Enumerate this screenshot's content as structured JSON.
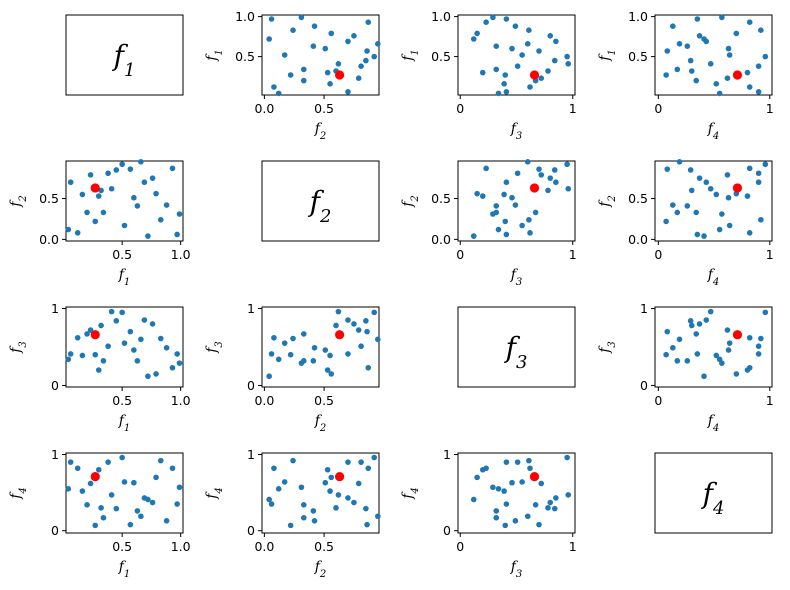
{
  "chart_data": {
    "type": "scatter",
    "title": "",
    "variables": [
      "f1",
      "f2",
      "f3",
      "f4"
    ],
    "variable_labels": [
      {
        "base": "f",
        "sub": "1"
      },
      {
        "base": "f",
        "sub": "2"
      },
      {
        "base": "f",
        "sub": "3"
      },
      {
        "base": "f",
        "sub": "4"
      }
    ],
    "layout": "4x4 scatter matrix; row variable on y-axis, column variable on x-axis; diagonal shows variable name",
    "grid": false,
    "legend": "none",
    "point_color": "#1f77b4",
    "highlight_color": "#ff0000",
    "highlight_point": {
      "f1": 0.27,
      "f2": 0.63,
      "f3": 0.66,
      "f4": 0.71
    },
    "ticks": {
      "f1": [
        {
          "value": 0.5,
          "label": "0.5"
        },
        {
          "value": 1.0,
          "label": "1.0"
        }
      ],
      "f2": [
        {
          "value": 0,
          "label": "0.0"
        },
        {
          "value": 0.5,
          "label": "0.5"
        }
      ],
      "f3": [
        {
          "value": 0,
          "label": "0"
        },
        {
          "value": 1,
          "label": "1"
        }
      ],
      "f4": [
        {
          "value": 0,
          "label": "0"
        },
        {
          "value": 1,
          "label": "1"
        }
      ]
    },
    "ticks_when_x": {
      "f1": [
        {
          "value": 0.5,
          "label": "0.5"
        },
        {
          "value": 1.0,
          "label": "1.0"
        }
      ],
      "f2": [
        {
          "value": 0,
          "label": "0.0"
        },
        {
          "value": 0.5,
          "label": "0.5"
        }
      ],
      "f3": [
        {
          "value": 0,
          "label": "0"
        },
        {
          "value": 1,
          "label": "1"
        }
      ],
      "f4": [
        {
          "value": 0,
          "label": "0"
        },
        {
          "value": 1,
          "label": "1"
        }
      ]
    },
    "ticks_when_y": {
      "f1": [
        {
          "value": 0.5,
          "label": "0.5"
        },
        {
          "value": 1.0,
          "label": "1.0"
        }
      ],
      "f2": [
        {
          "value": 0,
          "label": "0.0"
        },
        {
          "value": 0.5,
          "label": "0.5"
        }
      ],
      "f3": [
        {
          "value": 0,
          "label": "0"
        },
        {
          "value": 1,
          "label": "1"
        }
      ],
      "f4": [
        {
          "value": 0,
          "label": "0"
        },
        {
          "value": 1,
          "label": "1"
        }
      ]
    },
    "axis_range": {
      "f1": [
        0.02,
        1.02
      ],
      "f2": [
        -0.02,
        0.96
      ],
      "f3": [
        -0.02,
        1.02
      ],
      "f4": [
        -0.03,
        1.02
      ]
    },
    "points": [
      {
        "f1": 0.04,
        "f2": 0.12,
        "f3": 0.34,
        "f4": 0.55
      },
      {
        "f1": 0.06,
        "f2": 0.7,
        "f3": 0.41,
        "f4": 0.9
      },
      {
        "f1": 0.12,
        "f2": 0.08,
        "f3": 0.62,
        "f4": 0.82
      },
      {
        "f1": 0.16,
        "f2": 0.55,
        "f3": 0.39,
        "f4": 0.52
      },
      {
        "f1": 0.2,
        "f2": 0.33,
        "f3": 0.67,
        "f4": 0.34
      },
      {
        "f1": 0.23,
        "f2": 0.79,
        "f3": 0.72,
        "f4": 0.62
      },
      {
        "f1": 0.27,
        "f2": 0.22,
        "f3": 0.4,
        "f4": 0.07
      },
      {
        "f1": 0.3,
        "f2": 0.53,
        "f3": 0.2,
        "f4": 0.8
      },
      {
        "f1": 0.32,
        "f2": 0.6,
        "f3": 0.78,
        "f4": 0.3
      },
      {
        "f1": 0.34,
        "f2": 0.33,
        "f3": 0.32,
        "f4": 0.17
      },
      {
        "f1": 0.38,
        "f2": 0.81,
        "f3": 0.51,
        "f4": 0.9
      },
      {
        "f1": 0.41,
        "f2": 0.62,
        "f3": 0.96,
        "f4": 0.47
      },
      {
        "f1": 0.45,
        "f2": 0.85,
        "f3": 0.84,
        "f4": 0.29
      },
      {
        "f1": 0.5,
        "f2": 0.92,
        "f3": 0.95,
        "f4": 0.96
      },
      {
        "f1": 0.52,
        "f2": 0.17,
        "f3": 0.55,
        "f4": 0.64
      },
      {
        "f1": 0.57,
        "f2": 0.86,
        "f3": 0.7,
        "f4": 0.08
      },
      {
        "f1": 0.6,
        "f2": 0.51,
        "f3": 0.46,
        "f4": 0.63
      },
      {
        "f1": 0.63,
        "f2": 0.41,
        "f3": 0.32,
        "f4": 0.26
      },
      {
        "f1": 0.66,
        "f2": 0.95,
        "f3": 0.6,
        "f4": 0.19
      },
      {
        "f1": 0.69,
        "f2": 0.7,
        "f3": 0.85,
        "f4": 0.43
      },
      {
        "f1": 0.72,
        "f2": 0.04,
        "f3": 0.12,
        "f4": 0.41
      },
      {
        "f1": 0.76,
        "f2": 0.75,
        "f3": 0.8,
        "f4": 0.37
      },
      {
        "f1": 0.79,
        "f2": 0.56,
        "f3": 0.15,
        "f4": 0.7
      },
      {
        "f1": 0.83,
        "f2": 0.24,
        "f3": 0.61,
        "f4": 0.92
      },
      {
        "f1": 0.88,
        "f2": 0.42,
        "f3": 0.49,
        "f4": 0.13
      },
      {
        "f1": 0.93,
        "f2": 0.87,
        "f3": 0.23,
        "f4": 0.82
      },
      {
        "f1": 0.97,
        "f2": 0.06,
        "f3": 0.41,
        "f4": 0.35
      },
      {
        "f1": 0.99,
        "f2": 0.31,
        "f3": 0.29,
        "f4": 0.57
      }
    ]
  }
}
